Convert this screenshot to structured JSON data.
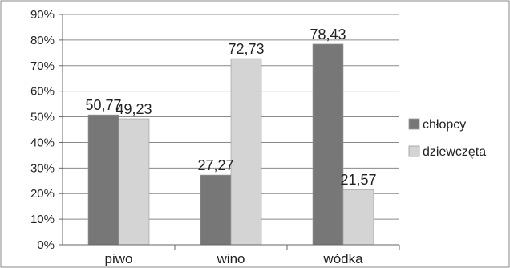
{
  "chart_data": {
    "type": "bar",
    "categories": [
      "piwo",
      "wino",
      "wódka"
    ],
    "series": [
      {
        "name": "chłopcy",
        "values": [
          50.77,
          27.27,
          78.43
        ],
        "labels": [
          "50,77",
          "27,27",
          "78,43"
        ],
        "color": "#777777"
      },
      {
        "name": "dziewczęta",
        "values": [
          49.23,
          72.73,
          21.57
        ],
        "labels": [
          "49,23",
          "72,73",
          "21,57"
        ],
        "color": "#d4d4d4"
      }
    ],
    "yticks": [
      "0%",
      "10%",
      "20%",
      "30%",
      "40%",
      "50%",
      "60%",
      "70%",
      "80%",
      "90%"
    ],
    "ylim": [
      0,
      90
    ],
    "grid": true,
    "legend_position": "right"
  }
}
